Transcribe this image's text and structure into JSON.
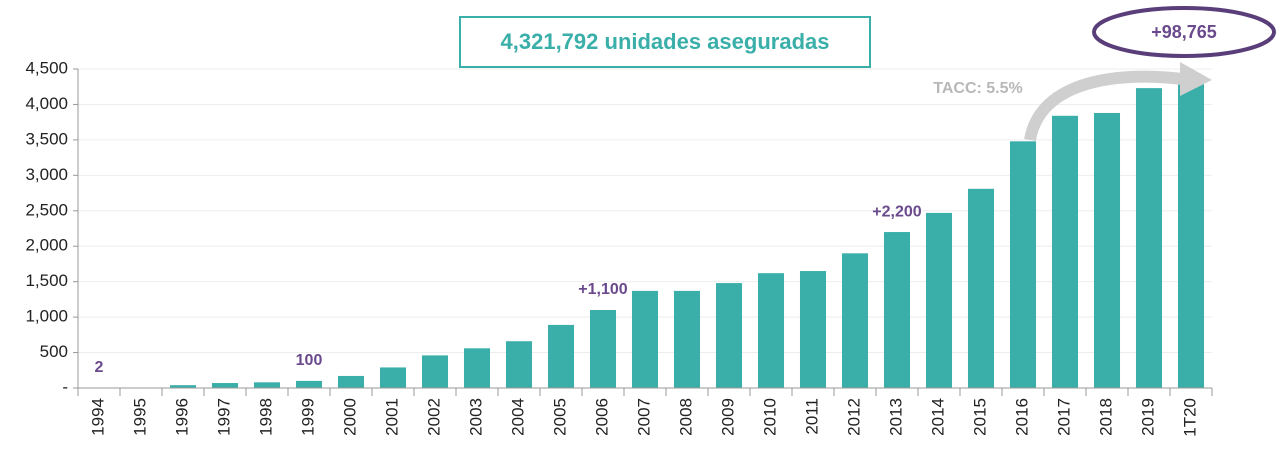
{
  "chart_data": {
    "type": "bar",
    "title": "4,321,792 unidades aseguradas",
    "categories": [
      "1994",
      "1995",
      "1996",
      "1997",
      "1998",
      "1999",
      "2000",
      "2001",
      "2002",
      "2003",
      "2004",
      "2005",
      "2006",
      "2007",
      "2008",
      "2009",
      "2010",
      "2011",
      "2012",
      "2013",
      "2014",
      "2015",
      "2016",
      "2017",
      "2018",
      "2019",
      "1T20"
    ],
    "values": [
      2,
      5,
      40,
      70,
      80,
      100,
      170,
      290,
      460,
      560,
      660,
      890,
      1100,
      1370,
      1370,
      1480,
      1620,
      1650,
      1900,
      2200,
      2470,
      2810,
      3480,
      3840,
      3880,
      4230,
      4321.792
    ],
    "value_labels": [
      "2",
      null,
      null,
      null,
      null,
      "100",
      null,
      null,
      null,
      null,
      null,
      null,
      "+1,100",
      null,
      null,
      null,
      null,
      null,
      null,
      "+2,200",
      null,
      null,
      null,
      null,
      null,
      null,
      null
    ],
    "annotations": [
      "TACC: 5.5%",
      "+98,765"
    ],
    "color": "#3aafa9",
    "ylim": [
      0,
      4500
    ],
    "yticks": [
      {
        "value": 0,
        "label": "-"
      },
      {
        "value": 500,
        "label": "500"
      },
      {
        "value": 1000,
        "label": "1,000"
      },
      {
        "value": 1500,
        "label": "1,500"
      },
      {
        "value": 2000,
        "label": "2,000"
      },
      {
        "value": 2500,
        "label": "2,500"
      },
      {
        "value": 3000,
        "label": "3,000"
      },
      {
        "value": 3500,
        "label": "3,500"
      },
      {
        "value": 4000,
        "label": "4,000"
      },
      {
        "value": 4500,
        "label": "4,500"
      }
    ],
    "grid": true
  }
}
